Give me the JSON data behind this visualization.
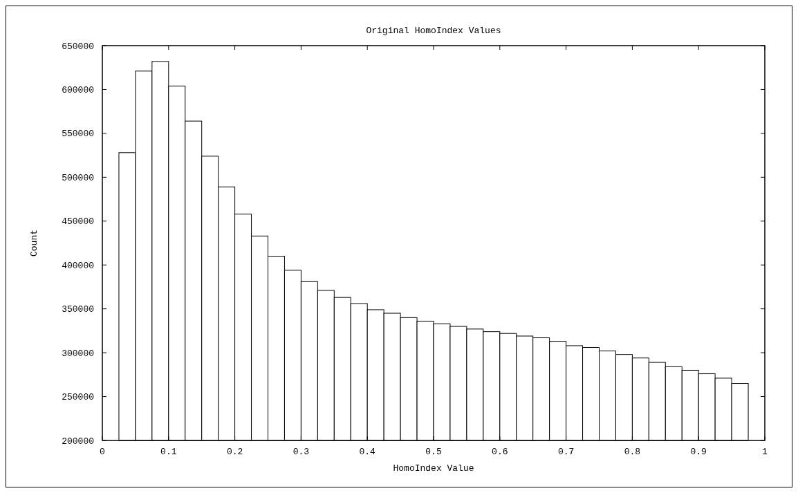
{
  "chart_data": {
    "type": "histogram",
    "title": "Original HomoIndex Values",
    "xlabel": "HomoIndex Value",
    "ylabel": "Count",
    "bins": [
      0.025,
      0.05,
      0.075,
      0.1,
      0.125,
      0.15,
      0.175,
      0.2,
      0.225,
      0.25,
      0.275,
      0.3,
      0.325,
      0.35,
      0.375,
      0.4,
      0.425,
      0.45,
      0.475,
      0.5,
      0.525,
      0.55,
      0.575,
      0.6,
      0.625,
      0.65,
      0.675,
      0.7,
      0.725,
      0.75,
      0.775,
      0.8,
      0.825,
      0.85,
      0.875,
      0.9,
      0.925,
      0.95,
      0.975
    ],
    "values": [
      528000,
      621000,
      632000,
      604000,
      564000,
      524000,
      489000,
      458000,
      433000,
      410000,
      394000,
      381000,
      371000,
      363000,
      356000,
      349000,
      345000,
      340000,
      336000,
      333000,
      330000,
      327000,
      324000,
      322000,
      319000,
      317000,
      313000,
      308000,
      306000,
      302000,
      298000,
      294000,
      289000,
      284000,
      280000,
      276000,
      271000,
      265000
    ],
    "color": "#ffffff",
    "xlim": [
      0,
      1
    ],
    "xticks": [
      0,
      0.1,
      0.2,
      0.3,
      0.4,
      0.5,
      0.6,
      0.7,
      0.8,
      0.9,
      1
    ],
    "ylim": [
      200000,
      650000
    ],
    "yticks": [
      200000,
      250000,
      300000,
      350000,
      400000,
      450000,
      500000,
      550000,
      600000,
      650000
    ],
    "grid": false
  }
}
